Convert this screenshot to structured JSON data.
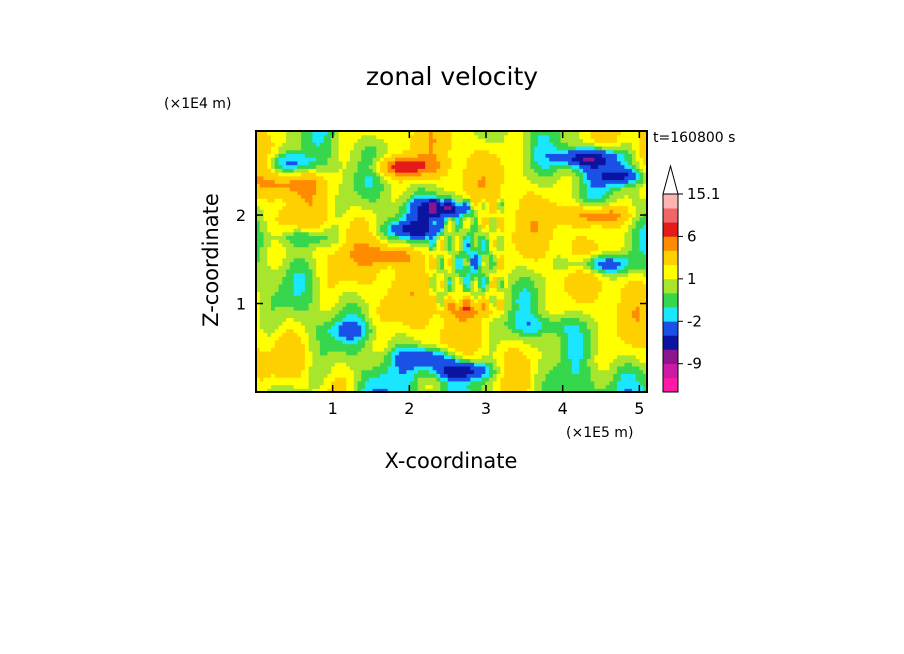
{
  "chart_data": {
    "type": "heatmap",
    "title": "zonal velocity",
    "xlabel": "X-coordinate",
    "ylabel": "Z-coordinate",
    "x_unit_label": "(×1E5 m)",
    "y_unit_label": "(×1E4 m)",
    "time_label": "t=160800 s",
    "xlim": [
      0,
      5.1
    ],
    "ylim": [
      0,
      2.95
    ],
    "x_ticks": [
      1,
      2,
      3,
      4,
      5
    ],
    "y_ticks": [
      1,
      2
    ],
    "colorbar": {
      "levels": [
        -16,
        -12,
        -9,
        -6,
        -4,
        -2,
        -1,
        0,
        1,
        2,
        4,
        6,
        9,
        12,
        15.1
      ],
      "colors": [
        "#ff1aa6",
        "#cc1aa6",
        "#8c148c",
        "#0a14a0",
        "#1a50e6",
        "#1ae6ff",
        "#36d64d",
        "#a8e62e",
        "#ffff00",
        "#ffd000",
        "#ff8c00",
        "#e61a1a",
        "#f06666",
        "#ffb4b4"
      ],
      "extend_top": true,
      "tick_labels": [
        "15.1",
        "6",
        "1",
        "-2",
        "-9"
      ]
    },
    "field_features": [
      {
        "x": 2.45,
        "z": 2.08,
        "u": -7
      },
      {
        "x": 2.05,
        "z": 1.85,
        "u": -5
      },
      {
        "x": 4.35,
        "z": 2.65,
        "u": -7
      },
      {
        "x": 4.75,
        "z": 2.45,
        "u": -5
      },
      {
        "x": 4.5,
        "z": 1.45,
        "u": -5
      },
      {
        "x": 2.65,
        "z": 0.25,
        "u": -7
      },
      {
        "x": 2.25,
        "z": 0.4,
        "u": -5
      },
      {
        "x": 0.45,
        "z": 2.6,
        "u": -3
      },
      {
        "x": 0.65,
        "z": 1.75,
        "u": -3
      },
      {
        "x": 1.95,
        "z": 2.55,
        "u": 6
      },
      {
        "x": 1.75,
        "z": 1.55,
        "u": 4
      },
      {
        "x": 4.45,
        "z": 2.0,
        "u": 5
      },
      {
        "x": 0.45,
        "z": 2.35,
        "u": 3
      },
      {
        "x": 2.75,
        "z": 0.95,
        "u": 3
      },
      {
        "x": 3.75,
        "z": 0.75,
        "u": -2
      },
      {
        "x": 1.25,
        "z": 0.7,
        "u": -2
      }
    ]
  }
}
